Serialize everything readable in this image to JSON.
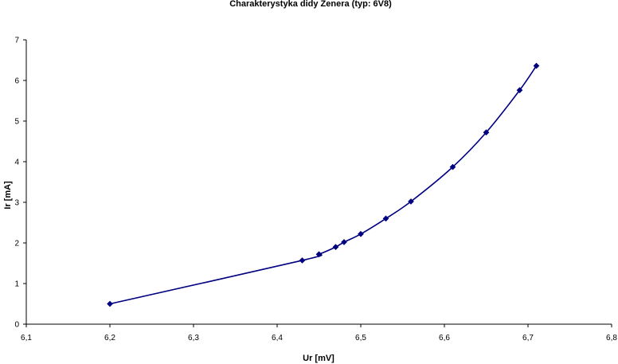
{
  "chart_data": {
    "type": "line",
    "title": "Charakterystyka didy Zenera (typ: 6V8)",
    "xlabel": "Ur [mV]",
    "ylabel": "Ir [mA]",
    "xlim": [
      6.1,
      6.8
    ],
    "ylim": [
      0,
      7
    ],
    "x_ticks": [
      6.1,
      6.2,
      6.3,
      6.4,
      6.5,
      6.6,
      6.7,
      6.8
    ],
    "x_tick_labels": [
      "6,1",
      "6,2",
      "6,3",
      "6,4",
      "6,5",
      "6,6",
      "6,7",
      "6,8"
    ],
    "y_ticks": [
      0,
      1,
      2,
      3,
      4,
      5,
      6,
      7
    ],
    "y_tick_labels": [
      "0",
      "1",
      "2",
      "3",
      "4",
      "5",
      "6",
      "7"
    ],
    "grid": false,
    "legend": "none",
    "series": [
      {
        "name": "Ir",
        "color": "#000080",
        "marker": "diamond",
        "smooth": true,
        "x": [
          6.2,
          6.43,
          6.45,
          6.47,
          6.48,
          6.5,
          6.53,
          6.56,
          6.61,
          6.65,
          6.69,
          6.71
        ],
        "y": [
          0.5,
          1.57,
          1.72,
          1.9,
          2.02,
          2.22,
          2.6,
          3.02,
          3.87,
          4.72,
          5.76,
          6.36
        ]
      }
    ]
  }
}
